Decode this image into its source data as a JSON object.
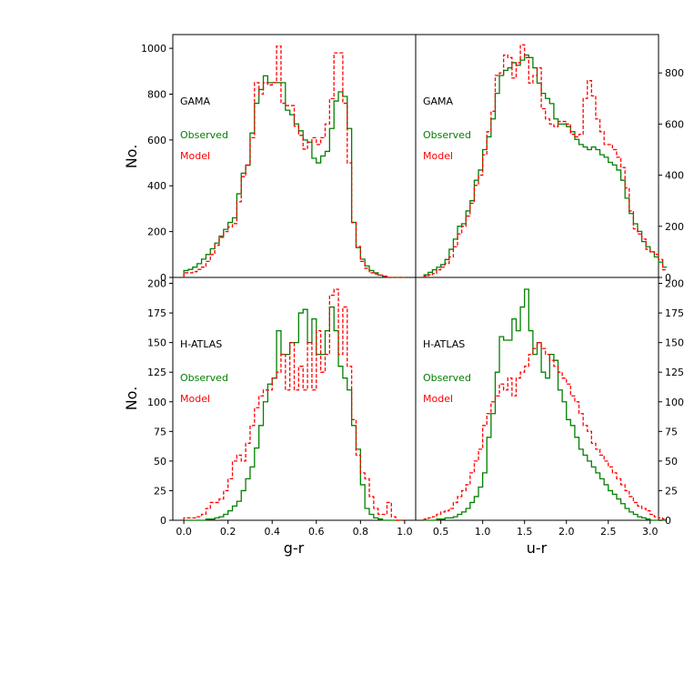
{
  "colors": {
    "observed": "#008000",
    "model": "#ff0000",
    "axis": "#000000"
  },
  "labels": {
    "ylabel_top": "No.",
    "ylabel_bottom": "No.",
    "xlabel_left": "g-r",
    "xlabel_right": "u-r",
    "gama": "GAMA",
    "hatlas": "H-ATLAS",
    "observed": "Observed",
    "model": "Model"
  },
  "chart_data": [
    {
      "type": "histogram",
      "panel": "top-left",
      "annotation": "GAMA",
      "legend": [
        "Observed",
        "Model"
      ],
      "xlabel": "",
      "ylabel": "No.",
      "xlim": [
        -0.05,
        1.05
      ],
      "ylim": [
        0,
        1060
      ],
      "yticks": [
        0,
        200,
        400,
        600,
        800,
        1000
      ],
      "y_axis_side": "left",
      "bin_start": 0.0,
      "bin_width": 0.02,
      "series": [
        {
          "name": "Observed",
          "style": "solid",
          "values": [
            30,
            35,
            45,
            60,
            80,
            100,
            125,
            150,
            180,
            210,
            240,
            260,
            365,
            455,
            490,
            630,
            760,
            820,
            880,
            850,
            850,
            850,
            850,
            730,
            710,
            670,
            640,
            600,
            590,
            520,
            500,
            530,
            550,
            650,
            770,
            810,
            790,
            650,
            240,
            130,
            80,
            50,
            30,
            20,
            10,
            5,
            0,
            0,
            0,
            0
          ]
        },
        {
          "name": "Model",
          "style": "dashed",
          "values": [
            20,
            20,
            25,
            35,
            45,
            70,
            100,
            140,
            175,
            200,
            220,
            235,
            330,
            440,
            490,
            610,
            850,
            800,
            850,
            840,
            850,
            1010,
            760,
            750,
            750,
            660,
            620,
            560,
            590,
            610,
            580,
            610,
            670,
            780,
            980,
            980,
            760,
            500,
            240,
            135,
            70,
            40,
            20,
            15,
            10,
            5,
            0,
            0,
            0,
            0
          ]
        }
      ]
    },
    {
      "type": "histogram",
      "panel": "top-right",
      "annotation": "GAMA",
      "legend": [
        "Observed",
        "Model"
      ],
      "xlabel": "",
      "ylabel": "",
      "xlim": [
        0.2,
        3.1
      ],
      "ylim": [
        0,
        950
      ],
      "yticks": [
        0,
        200,
        400,
        600,
        800
      ],
      "y_axis_side": "right",
      "bin_start": 0.3,
      "bin_width": 0.05,
      "series": [
        {
          "name": "Observed",
          "style": "solid",
          "values": [
            10,
            20,
            30,
            40,
            50,
            70,
            110,
            150,
            200,
            210,
            260,
            300,
            380,
            420,
            500,
            550,
            620,
            720,
            790,
            810,
            820,
            840,
            830,
            850,
            870,
            860,
            820,
            760,
            720,
            700,
            680,
            620,
            600,
            600,
            590,
            570,
            540,
            520,
            510,
            500,
            510,
            500,
            480,
            470,
            450,
            440,
            420,
            380,
            310,
            250,
            210,
            180,
            140,
            120,
            100,
            80,
            60,
            40
          ]
        },
        {
          "name": "Model",
          "style": "dashed",
          "values": [
            5,
            10,
            15,
            30,
            40,
            55,
            80,
            120,
            170,
            200,
            240,
            290,
            360,
            400,
            480,
            570,
            650,
            790,
            800,
            870,
            860,
            780,
            840,
            910,
            860,
            760,
            790,
            820,
            660,
            620,
            600,
            590,
            610,
            610,
            600,
            560,
            550,
            560,
            700,
            770,
            710,
            620,
            570,
            520,
            520,
            500,
            470,
            430,
            350,
            260,
            190,
            170,
            150,
            110,
            100,
            90,
            70,
            30
          ]
        }
      ]
    },
    {
      "type": "histogram",
      "panel": "bottom-left",
      "annotation": "H-ATLAS",
      "legend": [
        "Observed",
        "Model"
      ],
      "xlabel": "g-r",
      "ylabel": "No.",
      "xlim": [
        -0.05,
        1.05
      ],
      "ylim": [
        0,
        205
      ],
      "xticks": [
        0.0,
        0.2,
        0.4,
        0.6,
        0.8,
        1.0
      ],
      "yticks": [
        0,
        25,
        50,
        75,
        100,
        125,
        150,
        175,
        200
      ],
      "y_axis_side": "left",
      "bin_start": 0.0,
      "bin_width": 0.02,
      "series": [
        {
          "name": "Observed",
          "style": "solid",
          "values": [
            0,
            0,
            0,
            0,
            0,
            1,
            1,
            2,
            3,
            5,
            8,
            12,
            16,
            25,
            35,
            45,
            61,
            80,
            100,
            115,
            120,
            160,
            140,
            140,
            150,
            150,
            175,
            178,
            150,
            170,
            140,
            140,
            160,
            180,
            160,
            130,
            120,
            110,
            80,
            60,
            30,
            10,
            5,
            2,
            1,
            0,
            0,
            0,
            0,
            0
          ]
        },
        {
          "name": "Model",
          "style": "dashed",
          "values": [
            2,
            2,
            2,
            3,
            5,
            10,
            15,
            15,
            18,
            25,
            35,
            50,
            55,
            50,
            65,
            80,
            95,
            105,
            110,
            110,
            120,
            125,
            140,
            110,
            150,
            110,
            130,
            110,
            150,
            110,
            160,
            125,
            140,
            190,
            195,
            140,
            180,
            130,
            85,
            55,
            40,
            35,
            20,
            10,
            5,
            5,
            15,
            3,
            0,
            0
          ]
        }
      ]
    },
    {
      "type": "histogram",
      "panel": "bottom-right",
      "annotation": "H-ATLAS",
      "legend": [
        "Observed",
        "Model"
      ],
      "xlabel": "u-r",
      "ylabel": "",
      "xlim": [
        0.2,
        3.1
      ],
      "ylim": [
        0,
        205
      ],
      "xticks": [
        0.5,
        1.0,
        1.5,
        2.0,
        2.5,
        3.0
      ],
      "yticks": [
        0,
        25,
        50,
        75,
        100,
        125,
        150,
        175,
        200
      ],
      "y_axis_side": "right",
      "bin_start": 0.3,
      "bin_width": 0.05,
      "series": [
        {
          "name": "Observed",
          "style": "solid",
          "values": [
            0,
            0,
            0,
            1,
            1,
            2,
            2,
            3,
            5,
            7,
            10,
            15,
            20,
            28,
            40,
            70,
            90,
            125,
            155,
            152,
            152,
            170,
            160,
            180,
            195,
            160,
            140,
            150,
            125,
            120,
            140,
            135,
            110,
            100,
            85,
            80,
            70,
            60,
            55,
            50,
            45,
            40,
            35,
            30,
            25,
            22,
            18,
            14,
            10,
            7,
            5,
            3,
            2,
            1,
            0,
            0,
            0,
            0
          ]
        },
        {
          "name": "Model",
          "style": "dashed",
          "values": [
            1,
            2,
            3,
            5,
            7,
            8,
            10,
            15,
            20,
            25,
            30,
            40,
            50,
            60,
            80,
            90,
            100,
            105,
            115,
            110,
            120,
            105,
            120,
            125,
            130,
            140,
            145,
            150,
            145,
            140,
            135,
            130,
            125,
            120,
            115,
            105,
            100,
            90,
            80,
            75,
            65,
            60,
            55,
            50,
            45,
            40,
            35,
            30,
            25,
            20,
            15,
            12,
            10,
            8,
            5,
            3,
            2,
            1
          ]
        }
      ]
    }
  ]
}
